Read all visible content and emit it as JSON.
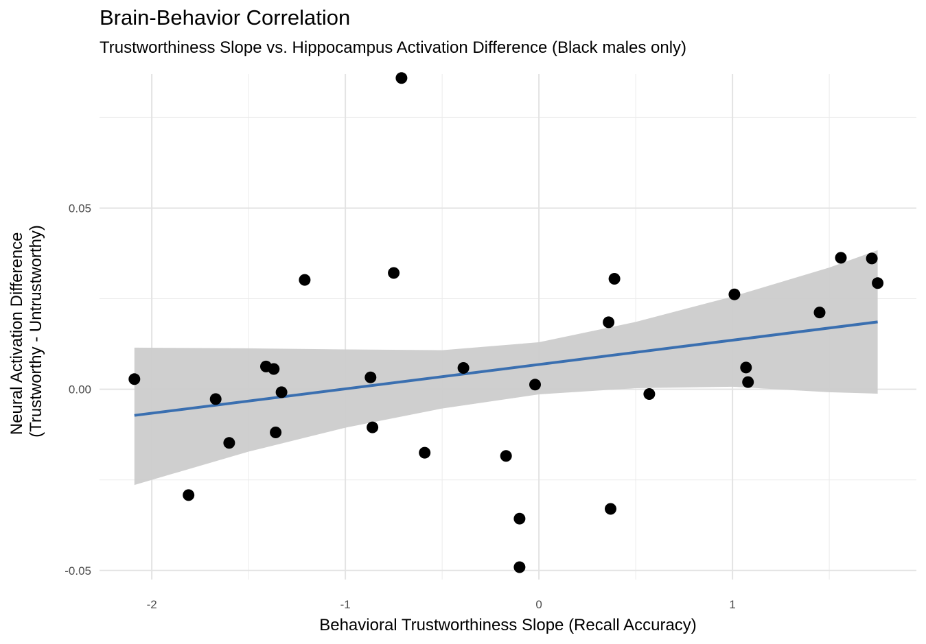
{
  "chart_data": {
    "type": "scatter",
    "title": "Brain-Behavior Correlation",
    "subtitle": "Trustworthiness Slope vs. Hippocampus Activation Difference (Black males only)",
    "xlabel": "Behavioral Trustworthiness Slope (Recall Accuracy)",
    "ylabel": [
      "Neural Activation Difference",
      "(Trustworthy - Untrustworthy)"
    ],
    "xlim": [
      -2.27,
      1.95
    ],
    "ylim": [
      -0.0525,
      0.087
    ],
    "x_ticks": [
      -2,
      -1,
      0,
      1
    ],
    "x_tick_labels": [
      "-2",
      "-1",
      "0",
      "1"
    ],
    "y_ticks": [
      -0.05,
      0.0,
      0.05
    ],
    "y_tick_labels": [
      "-0.05",
      "0.00",
      "0.05"
    ],
    "grid": true,
    "points": [
      {
        "x": -2.09,
        "y": 0.0028
      },
      {
        "x": -1.81,
        "y": -0.0292
      },
      {
        "x": -1.67,
        "y": -0.0027
      },
      {
        "x": -1.6,
        "y": -0.0148
      },
      {
        "x": -1.41,
        "y": 0.0063
      },
      {
        "x": -1.37,
        "y": 0.0056
      },
      {
        "x": -1.36,
        "y": -0.0119
      },
      {
        "x": -1.33,
        "y": -0.0008
      },
      {
        "x": -1.21,
        "y": 0.0302
      },
      {
        "x": -0.87,
        "y": 0.0033
      },
      {
        "x": -0.86,
        "y": -0.0105
      },
      {
        "x": -0.75,
        "y": 0.0321
      },
      {
        "x": -0.71,
        "y": 0.0859
      },
      {
        "x": -0.59,
        "y": -0.0175
      },
      {
        "x": -0.39,
        "y": 0.0059
      },
      {
        "x": -0.17,
        "y": -0.0184
      },
      {
        "x": -0.1,
        "y": -0.0357
      },
      {
        "x": -0.1,
        "y": -0.0491
      },
      {
        "x": -0.02,
        "y": 0.0013
      },
      {
        "x": 0.36,
        "y": 0.0185
      },
      {
        "x": 0.37,
        "y": -0.033
      },
      {
        "x": 0.39,
        "y": 0.0305
      },
      {
        "x": 0.57,
        "y": -0.0013
      },
      {
        "x": 1.01,
        "y": 0.0262
      },
      {
        "x": 1.07,
        "y": 0.006
      },
      {
        "x": 1.08,
        "y": 0.002
      },
      {
        "x": 1.45,
        "y": 0.0212
      },
      {
        "x": 1.56,
        "y": 0.0363
      },
      {
        "x": 1.72,
        "y": 0.0361
      },
      {
        "x": 1.75,
        "y": 0.0293
      }
    ],
    "fit_line": {
      "x": [
        -2.09,
        1.75
      ],
      "y": [
        -0.0072,
        0.0186
      ],
      "color": "#3a6fb0"
    },
    "confidence_band": {
      "x": [
        -2.09,
        -1.5,
        -1.0,
        -0.5,
        0.0,
        0.5,
        1.0,
        1.5,
        1.75
      ],
      "upper": [
        0.0115,
        0.0113,
        0.011,
        0.0108,
        0.013,
        0.0186,
        0.0256,
        0.0336,
        0.0384
      ],
      "lower": [
        -0.0264,
        -0.0172,
        -0.0106,
        -0.0053,
        -0.0014,
        0.0003,
        0.0007,
        -0.0008,
        -0.0012
      ],
      "color": "#cccccc"
    },
    "point_color": "#000000",
    "legend": "none"
  }
}
